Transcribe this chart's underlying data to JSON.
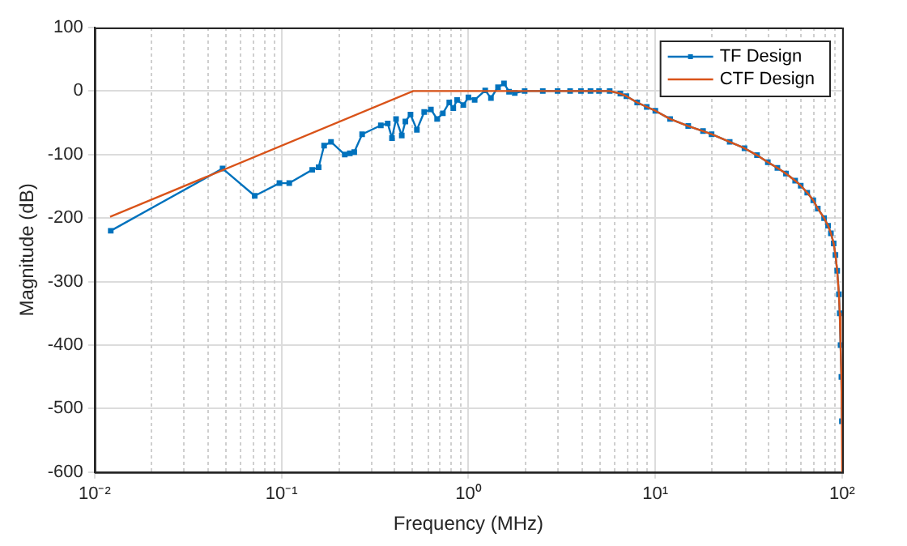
{
  "chart_data": {
    "type": "line",
    "xlabel": "Frequency (MHz)",
    "ylabel": "Magnitude (dB)",
    "log": "x",
    "xlim": [
      0.01,
      100
    ],
    "xticks": [
      {
        "value": 0.01,
        "label": "10⁻²"
      },
      {
        "value": 0.1,
        "label": "10⁻¹"
      },
      {
        "value": 1,
        "label": "10⁰"
      },
      {
        "value": 10,
        "label": "10¹"
      },
      {
        "value": 100,
        "label": "10²"
      }
    ],
    "ylim": [
      -600,
      100
    ],
    "yticks": [
      -600,
      -500,
      -400,
      -300,
      -200,
      -100,
      0,
      100
    ],
    "grid": true,
    "legend": "top right",
    "series": [
      {
        "name": "TF Design",
        "color": "#0072bd",
        "marker": "square",
        "x": [
          0.0122,
          0.0484,
          0.0719,
          0.0975,
          0.11,
          0.146,
          0.158,
          0.169,
          0.184,
          0.218,
          0.232,
          0.245,
          0.27,
          0.34,
          0.37,
          0.39,
          0.41,
          0.44,
          0.46,
          0.49,
          0.53,
          0.58,
          0.63,
          0.68,
          0.73,
          0.79,
          0.83,
          0.87,
          0.94,
          1.0,
          1.08,
          1.23,
          1.32,
          1.44,
          1.55,
          1.65,
          1.77,
          2,
          2.5,
          3,
          3.5,
          4,
          4.5,
          5,
          5.7,
          6.5,
          7,
          8,
          9,
          10,
          12,
          15,
          18,
          20,
          25,
          30,
          35,
          40,
          45,
          50,
          56,
          60,
          65,
          70,
          74,
          80,
          84,
          87,
          90,
          92,
          94,
          96,
          97,
          98,
          99,
          99.6
        ],
        "values": [
          -220,
          -122,
          -165,
          -145,
          -145,
          -124,
          -120,
          -86,
          -80,
          -100,
          -98,
          -96,
          -68,
          -54,
          -51,
          -74,
          -44,
          -70,
          -48,
          -37,
          -61,
          -33,
          -29,
          -44,
          -35,
          -18,
          -27,
          -14,
          -22,
          -10,
          -14,
          1,
          -11,
          6,
          12,
          -1,
          -3,
          0,
          0,
          0,
          0,
          0,
          0,
          0,
          0,
          -4,
          -8,
          -18,
          -25,
          -31,
          -44,
          -55,
          -63,
          -68,
          -80,
          -90,
          -101,
          -112,
          -121,
          -130,
          -141,
          -149,
          -160,
          -172,
          -185,
          -200,
          -212,
          -224,
          -240,
          -258,
          -283,
          -320,
          -350,
          -400,
          -450,
          -520
        ]
      },
      {
        "name": "CTF Design",
        "color": "#d95319",
        "marker": "none",
        "x": [
          0.0121,
          0.507,
          1,
          2,
          5.7,
          6.5,
          7,
          8,
          9,
          10,
          12,
          15,
          18,
          20,
          25,
          30,
          35,
          40,
          45,
          50,
          56,
          60,
          65,
          70,
          74,
          80,
          84,
          87,
          90,
          92,
          94,
          96,
          97,
          98,
          99,
          99.6,
          100
        ],
        "values": [
          -198,
          0,
          0,
          0,
          0,
          -4,
          -8,
          -18,
          -25,
          -31,
          -44,
          -55,
          -63,
          -68,
          -80,
          -90,
          -101,
          -112,
          -121,
          -130,
          -141,
          -149,
          -160,
          -172,
          -185,
          -200,
          -212,
          -224,
          -240,
          -258,
          -283,
          -320,
          -350,
          -400,
          -450,
          -520,
          -600
        ]
      }
    ]
  }
}
